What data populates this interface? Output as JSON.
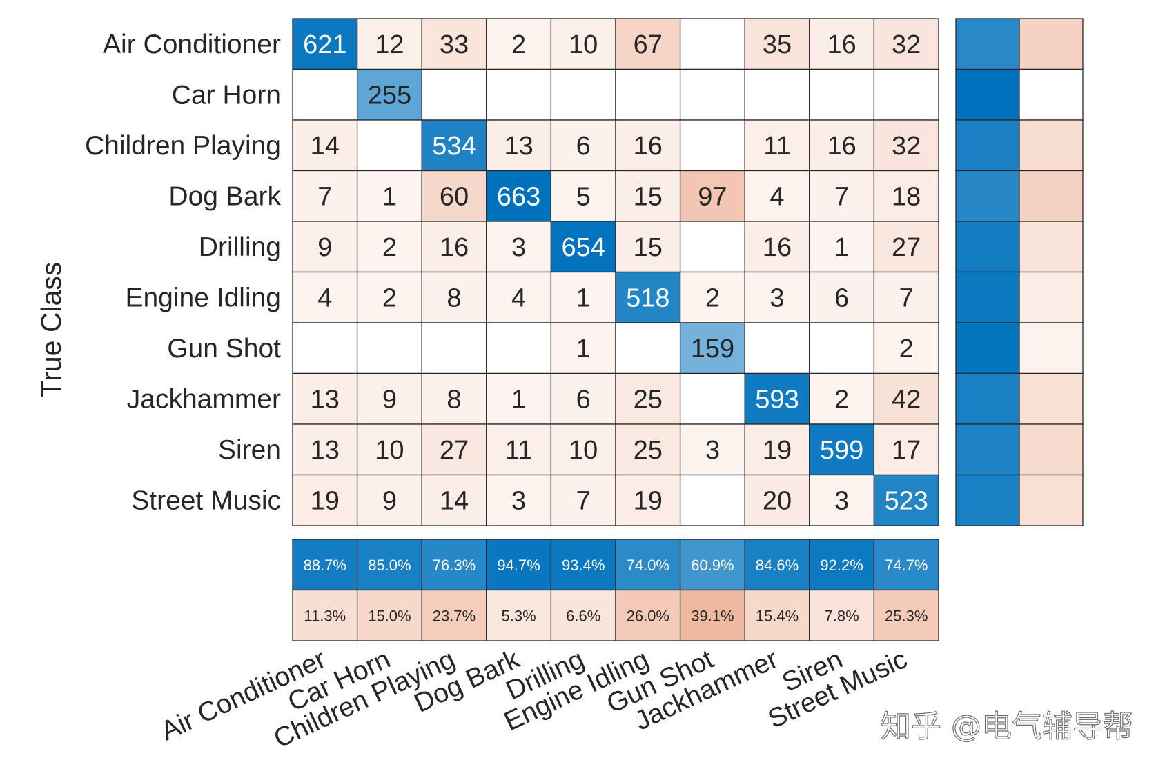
{
  "chart_data": {
    "type": "heatmap",
    "chart_kind": "confusion matrix",
    "ylabel": "True Class",
    "classes": [
      "Air Conditioner",
      "Car Horn",
      "Children Playing",
      "Dog Bark",
      "Drilling",
      "Engine Idling",
      "Gun Shot",
      "Jackhammer",
      "Siren",
      "Street Music"
    ],
    "matrix": [
      [
        621,
        12,
        33,
        2,
        10,
        67,
        null,
        35,
        16,
        32
      ],
      [
        null,
        255,
        null,
        null,
        null,
        null,
        null,
        null,
        null,
        null
      ],
      [
        14,
        null,
        534,
        13,
        6,
        16,
        null,
        11,
        16,
        32
      ],
      [
        7,
        1,
        60,
        663,
        5,
        15,
        97,
        4,
        7,
        18
      ],
      [
        9,
        2,
        16,
        3,
        654,
        15,
        null,
        16,
        1,
        27
      ],
      [
        4,
        2,
        8,
        4,
        1,
        518,
        2,
        3,
        6,
        7
      ],
      [
        null,
        null,
        null,
        null,
        1,
        null,
        159,
        null,
        null,
        2
      ],
      [
        13,
        9,
        8,
        1,
        6,
        25,
        null,
        593,
        2,
        42
      ],
      [
        13,
        10,
        27,
        11,
        10,
        25,
        3,
        19,
        599,
        17
      ],
      [
        19,
        9,
        14,
        3,
        7,
        19,
        null,
        20,
        3,
        523
      ]
    ],
    "column_summary": {
      "correct": [
        "88.7%",
        "85.0%",
        "76.3%",
        "94.7%",
        "93.4%",
        "74.0%",
        "60.9%",
        "84.6%",
        "92.2%",
        "74.7%"
      ],
      "incorrect": [
        "11.3%",
        "15.0%",
        "23.7%",
        "5.3%",
        "6.6%",
        "26.0%",
        "39.1%",
        "15.4%",
        "7.8%",
        "25.3%"
      ]
    },
    "row_summary_shown_as_color_only": true,
    "colors": {
      "correct_dark": "#0072bd",
      "incorrect_max": "#d95319",
      "border": "#262626",
      "text_dark": "#262626",
      "text_light": "#ffffff"
    }
  },
  "watermark": "知乎 @电气辅导帮"
}
